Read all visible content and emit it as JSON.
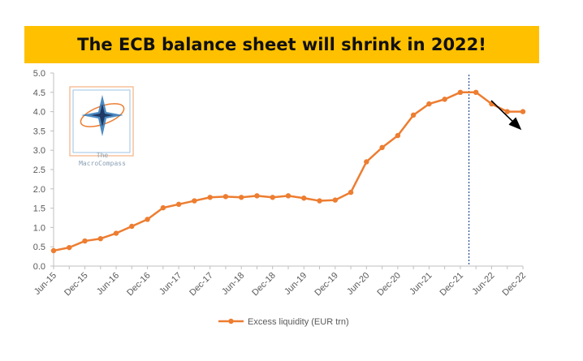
{
  "chart_data": {
    "type": "line",
    "title": "The ECB balance sheet will shrink in 2022!",
    "xlabel": "",
    "ylabel": "",
    "ylim": [
      0,
      5
    ],
    "yticks": [
      "0.0",
      "0.5",
      "1.0",
      "1.5",
      "2.0",
      "2.5",
      "3.0",
      "3.5",
      "4.0",
      "4.5",
      "5.0"
    ],
    "xtick_labels": [
      "Jun-15",
      "Dec-15",
      "Jun-16",
      "Dec-16",
      "Jun-17",
      "Dec-17",
      "Jun-18",
      "Dec-18",
      "Jun-19",
      "Dec-19",
      "Jun-20",
      "Dec-20",
      "Jun-21",
      "Dec-21",
      "Jun-22",
      "Dec-22"
    ],
    "x_interval": "quarterly",
    "grid": false,
    "legend_position": "bottom",
    "series": [
      {
        "name": "Excess liquidity (EUR trn)",
        "color": "#ED7D31",
        "values": [
          0.4,
          0.48,
          0.65,
          0.71,
          0.85,
          1.03,
          1.21,
          1.51,
          1.6,
          1.69,
          1.78,
          1.8,
          1.78,
          1.82,
          1.78,
          1.82,
          1.76,
          1.69,
          1.71,
          1.91,
          2.7,
          3.07,
          3.38,
          3.91,
          4.2,
          4.32,
          4.5,
          4.5,
          4.2,
          4.0,
          4.0
        ]
      }
    ],
    "annotations": {
      "vertical_marker_after_index": 26,
      "vertical_marker_color": "#2F5597",
      "arrow_direction": "down-right",
      "arrow_color": "#000000"
    }
  },
  "logo": {
    "name": "compass-rose-logo",
    "line1": "The",
    "line2": "MacroCompass"
  }
}
